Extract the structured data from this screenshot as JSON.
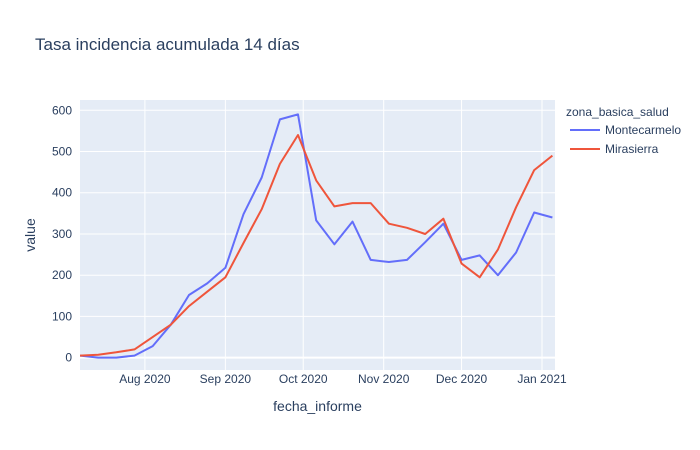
{
  "chart_data": {
    "type": "line",
    "title": "Tasa incidencia acumulada 14 días",
    "xlabel": "fecha_informe",
    "ylabel": "value",
    "x_ticks": [
      {
        "date": "2020-08-01",
        "label": "Aug 2020"
      },
      {
        "date": "2020-09-01",
        "label": "Sep 2020"
      },
      {
        "date": "2020-10-01",
        "label": "Oct 2020"
      },
      {
        "date": "2020-11-01",
        "label": "Nov 2020"
      },
      {
        "date": "2020-12-01",
        "label": "Dec 2020"
      },
      {
        "date": "2021-01-01",
        "label": "Jan 2021"
      }
    ],
    "y_ticks": [
      0,
      100,
      200,
      300,
      400,
      500,
      600
    ],
    "xlim": [
      "2020-07-07",
      "2021-01-06"
    ],
    "ylim": [
      -30,
      625
    ],
    "grid": true,
    "legend": {
      "title": "zona_basica_salud",
      "position": "right"
    },
    "series": [
      {
        "name": "Montecarmelo",
        "color": "#636efa",
        "x": [
          "2020-07-07",
          "2020-07-14",
          "2020-07-21",
          "2020-07-28",
          "2020-08-04",
          "2020-08-11",
          "2020-08-18",
          "2020-08-25",
          "2020-09-01",
          "2020-09-08",
          "2020-09-15",
          "2020-09-22",
          "2020-09-29",
          "2020-10-06",
          "2020-10-13",
          "2020-10-20",
          "2020-10-27",
          "2020-11-03",
          "2020-11-10",
          "2020-11-17",
          "2020-11-24",
          "2020-12-01",
          "2020-12-08",
          "2020-12-15",
          "2020-12-22",
          "2020-12-29",
          "2021-01-05"
        ],
        "y": [
          5,
          0,
          0,
          5,
          28,
          80,
          152,
          180,
          218,
          348,
          437,
          578,
          590,
          333,
          275,
          330,
          237,
          232,
          237,
          280,
          325,
          237,
          248,
          200,
          255,
          352,
          340
        ]
      },
      {
        "name": "Mirasierra",
        "color": "#ef553b",
        "x": [
          "2020-07-07",
          "2020-07-14",
          "2020-07-21",
          "2020-07-28",
          "2020-08-11",
          "2020-08-18",
          "2020-08-25",
          "2020-09-01",
          "2020-09-08",
          "2020-09-15",
          "2020-09-22",
          "2020-09-29",
          "2020-10-06",
          "2020-10-13",
          "2020-10-20",
          "2020-10-27",
          "2020-11-03",
          "2020-11-10",
          "2020-11-17",
          "2020-11-24",
          "2020-12-01",
          "2020-12-08",
          "2020-12-15",
          "2020-12-22",
          "2020-12-29",
          "2021-01-05"
        ],
        "y": [
          5,
          7,
          13,
          20,
          80,
          125,
          160,
          195,
          278,
          360,
          470,
          540,
          430,
          367,
          375,
          375,
          325,
          315,
          300,
          337,
          228,
          195,
          262,
          365,
          455,
          490
        ]
      }
    ]
  }
}
